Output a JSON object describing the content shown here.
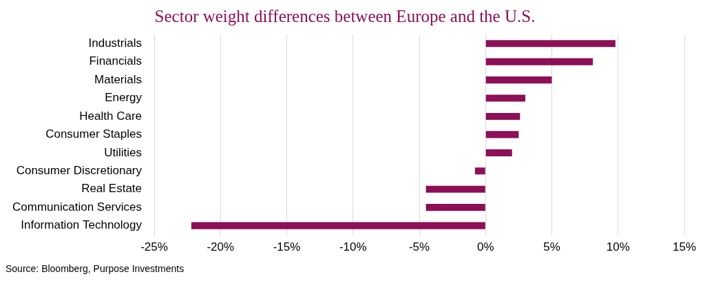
{
  "chart_data": {
    "type": "bar",
    "orientation": "horizontal",
    "title": "Sector weight differences between Europe and the U.S.",
    "source": "Source: Bloomberg, Purpose Investments",
    "categories": [
      "Industrials",
      "Financials",
      "Materials",
      "Energy",
      "Health Care",
      "Consumer Staples",
      "Utilities",
      "Consumer Discretionary",
      "Real Estate",
      "Communication Services",
      "Information Technology"
    ],
    "values": [
      9.8,
      8.1,
      5.0,
      3.0,
      2.6,
      2.5,
      2.0,
      -0.8,
      -4.5,
      -4.5,
      -22.2
    ],
    "color": "#8c0f57",
    "xlim": [
      -25,
      15
    ],
    "xticks": [
      {
        "value": -25,
        "label": "-25%"
      },
      {
        "value": -20,
        "label": "-20%"
      },
      {
        "value": -15,
        "label": "-15%"
      },
      {
        "value": -10,
        "label": "-10%"
      },
      {
        "value": -5,
        "label": "-5%"
      },
      {
        "value": 0,
        "label": "0%"
      },
      {
        "value": 5,
        "label": "5%"
      },
      {
        "value": 10,
        "label": "10%"
      },
      {
        "value": 15,
        "label": "15%"
      }
    ],
    "grid": true
  }
}
